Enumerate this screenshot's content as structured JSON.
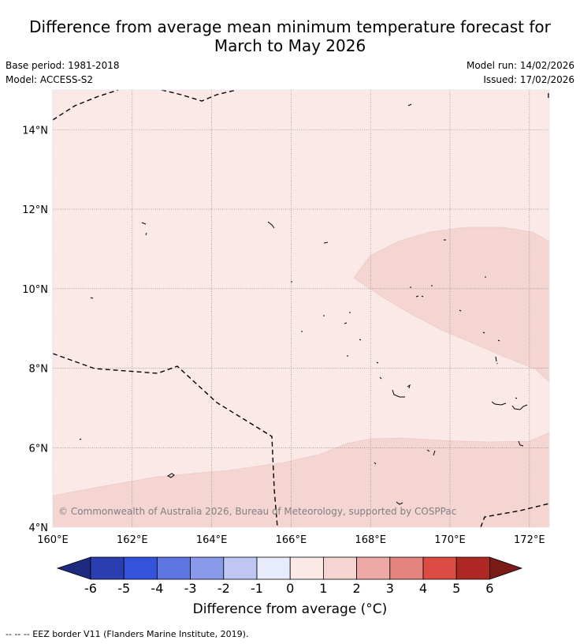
{
  "title_line1": "Difference from average mean minimum temperature forecast for",
  "title_line2": "March to May 2026",
  "base_period": "Base period: 1981-2018",
  "model": "Model: ACCESS-S2",
  "model_run": "Model run: 14/02/2026",
  "issued": "Issued: 17/02/2026",
  "map": {
    "lon_range": [
      160,
      172.5
    ],
    "lat_range": [
      4,
      15
    ],
    "lon_ticks": [
      {
        "value": 160,
        "label": "160°E"
      },
      {
        "value": 162,
        "label": "162°E"
      },
      {
        "value": 164,
        "label": "164°E"
      },
      {
        "value": 166,
        "label": "166°E"
      },
      {
        "value": 168,
        "label": "168°E"
      },
      {
        "value": 170,
        "label": "170°E"
      },
      {
        "value": 172,
        "label": "172°E"
      }
    ],
    "lat_ticks": [
      {
        "value": 4,
        "label": "4°N"
      },
      {
        "value": 6,
        "label": "6°N"
      },
      {
        "value": 8,
        "label": "8°N"
      },
      {
        "value": 10,
        "label": "10°N"
      },
      {
        "value": 12,
        "label": "12°N"
      },
      {
        "value": 14,
        "label": "14°N"
      }
    ],
    "gridlines": true,
    "background_category": "0 to 1",
    "background_color": "#fbe9e7",
    "anomaly_color": "#f4d5d2",
    "watermark": "© Commonwealth of Australia 2026, Bureau of Meteorology, supported by COSPPac"
  },
  "colorbar": {
    "label": "Difference from average (°C)",
    "ticks": [
      "-6",
      "-5",
      "-4",
      "-3",
      "-2",
      "-1",
      "0",
      "1",
      "2",
      "3",
      "4",
      "5",
      "6"
    ],
    "colors": [
      "#1c2b7f",
      "#2a3eb0",
      "#3552dd",
      "#5f76e2",
      "#8999ea",
      "#bec6f3",
      "#e8ebfb",
      "#fbe9e7",
      "#f4d5d2",
      "#edaaa5",
      "#e5847e",
      "#dc4c42",
      "#ae2823",
      "#7b1b17"
    ]
  },
  "footer": "-- -- -- EEZ border V11 (Flanders Marine Institute, 2019)."
}
